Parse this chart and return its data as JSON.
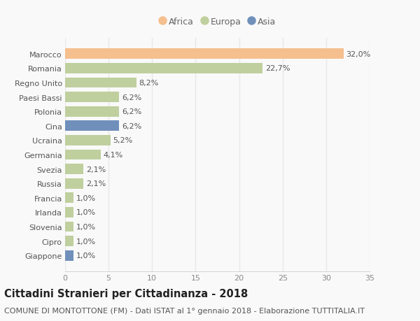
{
  "countries": [
    "Marocco",
    "Romania",
    "Regno Unito",
    "Paesi Bassi",
    "Polonia",
    "Cina",
    "Ucraina",
    "Germania",
    "Svezia",
    "Russia",
    "Francia",
    "Irlanda",
    "Slovenia",
    "Cipro",
    "Giappone"
  ],
  "values": [
    32.0,
    22.7,
    8.2,
    6.2,
    6.2,
    6.2,
    5.2,
    4.1,
    2.1,
    2.1,
    1.0,
    1.0,
    1.0,
    1.0,
    1.0
  ],
  "labels": [
    "32,0%",
    "22,7%",
    "8,2%",
    "6,2%",
    "6,2%",
    "6,2%",
    "5,2%",
    "4,1%",
    "2,1%",
    "2,1%",
    "1,0%",
    "1,0%",
    "1,0%",
    "1,0%",
    "1,0%"
  ],
  "continents": [
    "Africa",
    "Europa",
    "Europa",
    "Europa",
    "Europa",
    "Asia",
    "Europa",
    "Europa",
    "Europa",
    "Europa",
    "Europa",
    "Europa",
    "Europa",
    "Europa",
    "Asia"
  ],
  "colors": {
    "Africa": "#f5bf8e",
    "Europa": "#bfcf9e",
    "Asia": "#7090bb"
  },
  "legend_labels": [
    "Africa",
    "Europa",
    "Asia"
  ],
  "xlim": [
    0,
    35
  ],
  "xticks": [
    0,
    5,
    10,
    15,
    20,
    25,
    30,
    35
  ],
  "title": "Cittadini Stranieri per Cittadinanza - 2018",
  "subtitle": "COMUNE DI MONTOTTONE (FM) - Dati ISTAT al 1° gennaio 2018 - Elaborazione TUTTITALIA.IT",
  "background_color": "#f9f9f9",
  "grid_color": "#e8e8e8",
  "bar_height": 0.72,
  "title_fontsize": 10.5,
  "subtitle_fontsize": 8,
  "tick_fontsize": 8,
  "label_fontsize": 8
}
